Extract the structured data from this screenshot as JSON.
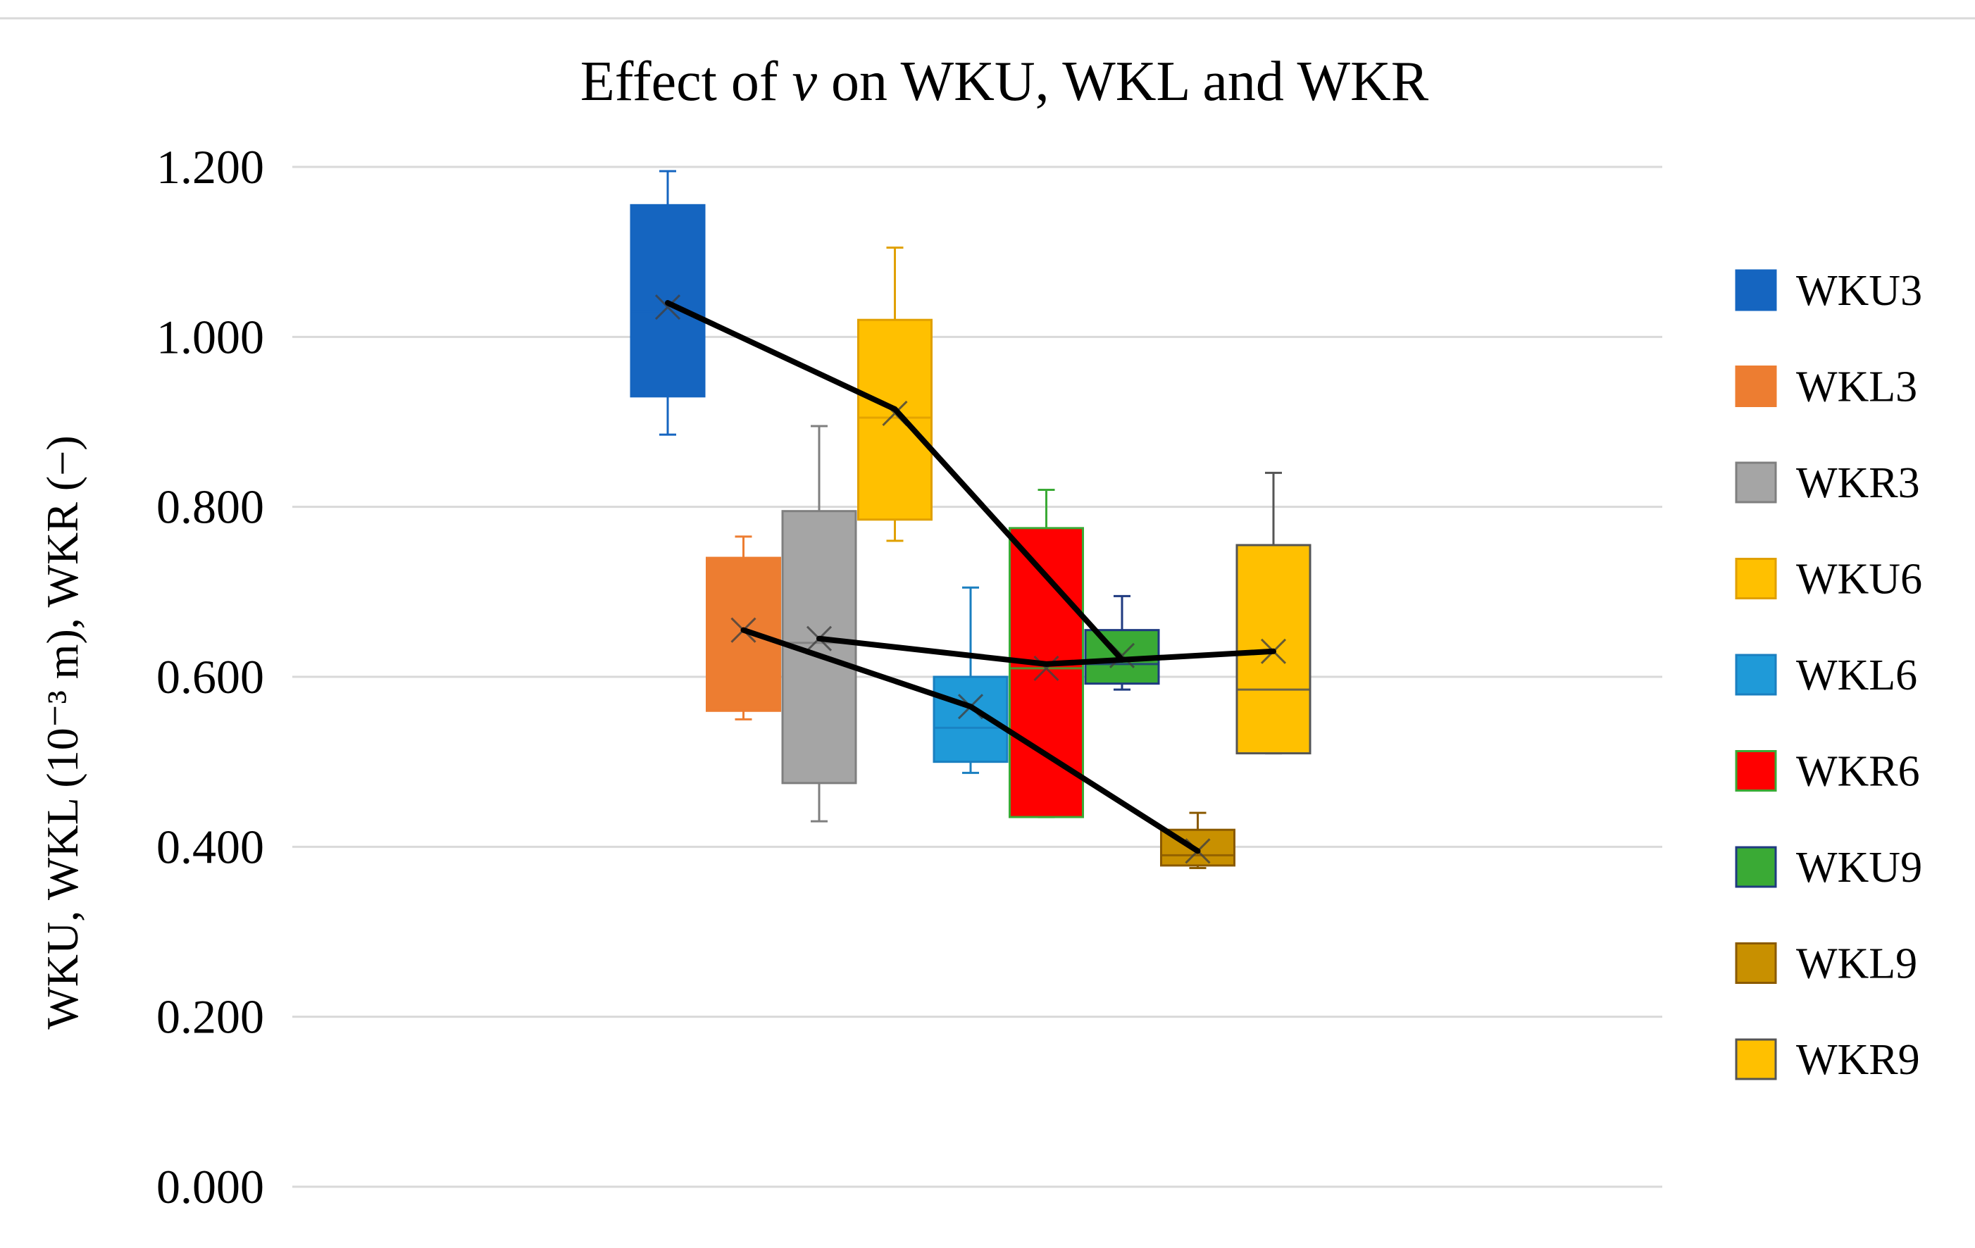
{
  "chart_data": {
    "type": "box",
    "title": "Effect of v on WKU, WKL and WKR",
    "title_parts": [
      "Effect of ",
      "v",
      " on WKU, WKL and WKR"
    ],
    "ylabel": "WKU, WKL (10⁻³ m), WKR (−)",
    "ylim": [
      0.0,
      1.2
    ],
    "yticks": [
      "0.000",
      "0.200",
      "0.400",
      "0.600",
      "0.800",
      "1.000",
      "1.200"
    ],
    "grid": true,
    "legend_position": "right",
    "series": [
      {
        "name": "WKU3",
        "color": "#1565c0",
        "stroke": "#1565c0",
        "min": 0.885,
        "q1": 0.93,
        "median": 1.03,
        "q3": 1.155,
        "max": 1.195,
        "mean": 1.035
      },
      {
        "name": "WKL3",
        "color": "#ed7d31",
        "stroke": "#ed7d31",
        "min": 0.55,
        "q1": 0.56,
        "median": 0.648,
        "q3": 0.74,
        "max": 0.765,
        "mean": 0.655
      },
      {
        "name": "WKR3",
        "color": "#a5a5a5",
        "stroke": "#7f7f7f",
        "min": 0.43,
        "q1": 0.475,
        "median": 0.64,
        "q3": 0.795,
        "max": 0.895,
        "mean": 0.645
      },
      {
        "name": "WKU6",
        "color": "#ffc000",
        "stroke": "#e0a000",
        "min": 0.76,
        "q1": 0.785,
        "median": 0.905,
        "q3": 1.02,
        "max": 1.105,
        "mean": 0.91
      },
      {
        "name": "WKL6",
        "color": "#1f9ad8",
        "stroke": "#1a7fc0",
        "min": 0.487,
        "q1": 0.5,
        "median": 0.54,
        "q3": 0.6,
        "max": 0.705,
        "mean": 0.565
      },
      {
        "name": "WKR6",
        "color": "#ff0000",
        "stroke": "#3aaa35",
        "min": 0.435,
        "q1": 0.435,
        "median": 0.61,
        "q3": 0.775,
        "max": 0.82,
        "mean": 0.61
      },
      {
        "name": "WKU9",
        "color": "#3aaa35",
        "stroke": "#1f3a80",
        "min": 0.585,
        "q1": 0.592,
        "median": 0.615,
        "q3": 0.655,
        "max": 0.695,
        "mean": 0.625
      },
      {
        "name": "WKL9",
        "color": "#c89000",
        "stroke": "#8a5a00",
        "min": 0.375,
        "q1": 0.378,
        "median": 0.39,
        "q3": 0.42,
        "max": 0.44,
        "mean": 0.395
      },
      {
        "name": "WKR9",
        "color": "#ffc000",
        "stroke": "#555555",
        "min": 0.51,
        "q1": 0.51,
        "median": 0.585,
        "q3": 0.755,
        "max": 0.84,
        "mean": 0.63
      }
    ],
    "trend_lines": [
      {
        "series": [
          "WKU3",
          "WKU6",
          "WKU9"
        ],
        "values": [
          1.04,
          0.915,
          0.62
        ]
      },
      {
        "series": [
          "WKL3",
          "WKL6",
          "WKL9"
        ],
        "values": [
          0.655,
          0.565,
          0.395
        ]
      },
      {
        "series": [
          "WKR3",
          "WKR6",
          "WKR9"
        ],
        "values": [
          0.645,
          0.615,
          0.63
        ]
      }
    ]
  }
}
